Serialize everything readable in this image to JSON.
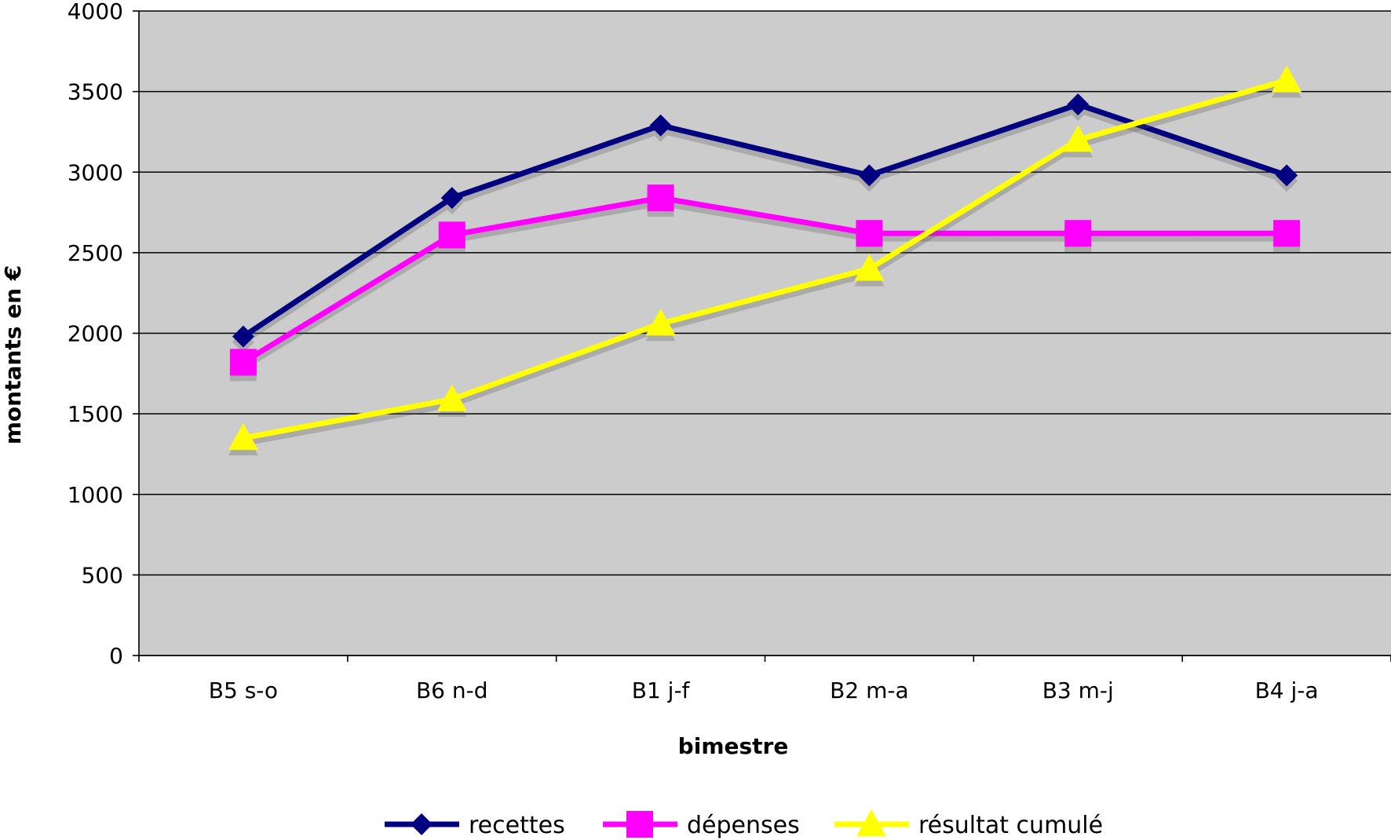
{
  "chart_data": {
    "type": "line",
    "title": "",
    "xlabel": "bimestre",
    "ylabel": "montants en €",
    "ylim": [
      0,
      4000
    ],
    "yticks": [
      0,
      500,
      1000,
      1500,
      2000,
      2500,
      3000,
      3500,
      4000
    ],
    "categories": [
      "B5 s-o",
      "B6 n-d",
      "B1 j-f",
      "B2 m-a",
      "B3 m-j",
      "B4 j-a"
    ],
    "grid": true,
    "plot_background": "#cccccc",
    "legend_position": "bottom",
    "series": [
      {
        "name": "recettes",
        "color": "#000080",
        "marker": "diamond",
        "values": [
          1980,
          2840,
          3290,
          2980,
          3420,
          2980
        ]
      },
      {
        "name": "dépenses",
        "color": "#ff00ff",
        "marker": "square",
        "values": [
          1820,
          2610,
          2840,
          2620,
          2620,
          2620
        ]
      },
      {
        "name": "résultat cumulé",
        "color": "#ffff00",
        "marker": "triangle",
        "values": [
          1350,
          1590,
          2060,
          2400,
          3200,
          3570
        ]
      }
    ]
  }
}
